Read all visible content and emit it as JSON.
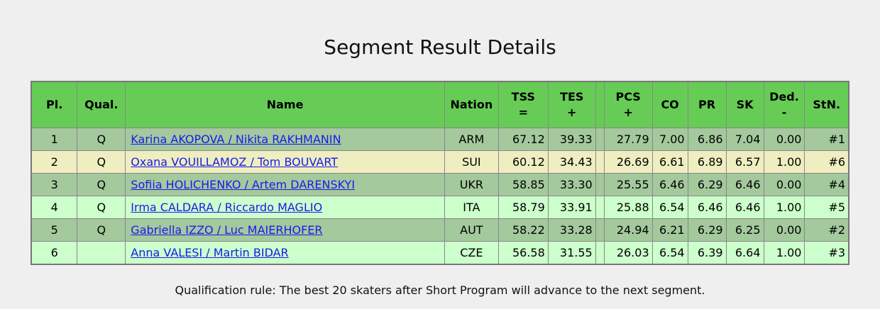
{
  "title": "Segment Result Details",
  "table": {
    "headers": [
      {
        "label": "Pl."
      },
      {
        "label": "Qual."
      },
      {
        "label": "Name"
      },
      {
        "label": "Nation"
      },
      {
        "label": "TSS",
        "sub": "="
      },
      {
        "label": "TES",
        "sub": "+"
      },
      {
        "label": "PCS",
        "sub": "+"
      },
      {
        "label": "CO"
      },
      {
        "label": "PR"
      },
      {
        "label": "SK"
      },
      {
        "label": "Ded.",
        "sub": "-"
      },
      {
        "label": "StN."
      }
    ],
    "rows": [
      [
        "1",
        "Q",
        "Karina AKOPOVA / Nikita RAKHMANIN",
        "ARM",
        "67.12",
        "39.33",
        "27.79",
        "7.00",
        "6.86",
        "7.04",
        "0.00",
        "#1"
      ],
      [
        "2",
        "Q",
        "Oxana VOUILLAMOZ / Tom BOUVART",
        "SUI",
        "60.12",
        "34.43",
        "26.69",
        "6.61",
        "6.89",
        "6.57",
        "1.00",
        "#6"
      ],
      [
        "3",
        "Q",
        "Sofiia HOLICHENKO / Artem DARENSKYI",
        "UKR",
        "58.85",
        "33.30",
        "25.55",
        "6.46",
        "6.29",
        "6.46",
        "0.00",
        "#4"
      ],
      [
        "4",
        "Q",
        "Irma CALDARA / Riccardo MAGLIO",
        "ITA",
        "58.79",
        "33.91",
        "25.88",
        "6.54",
        "6.46",
        "6.46",
        "1.00",
        "#5"
      ],
      [
        "5",
        "Q",
        "Gabriella IZZO / Luc MAIERHOFER",
        "AUT",
        "58.22",
        "33.28",
        "24.94",
        "6.21",
        "6.29",
        "6.25",
        "0.00",
        "#2"
      ],
      [
        "6",
        null,
        "Anna VALESI / Martin BIDAR",
        "CZE",
        "56.58",
        "31.55",
        "26.03",
        "6.54",
        "6.39",
        "6.64",
        "1.00",
        "#3"
      ]
    ]
  },
  "footnote": "Qualification rule: The best 20 skaters after Short Program will advance to the next segment."
}
